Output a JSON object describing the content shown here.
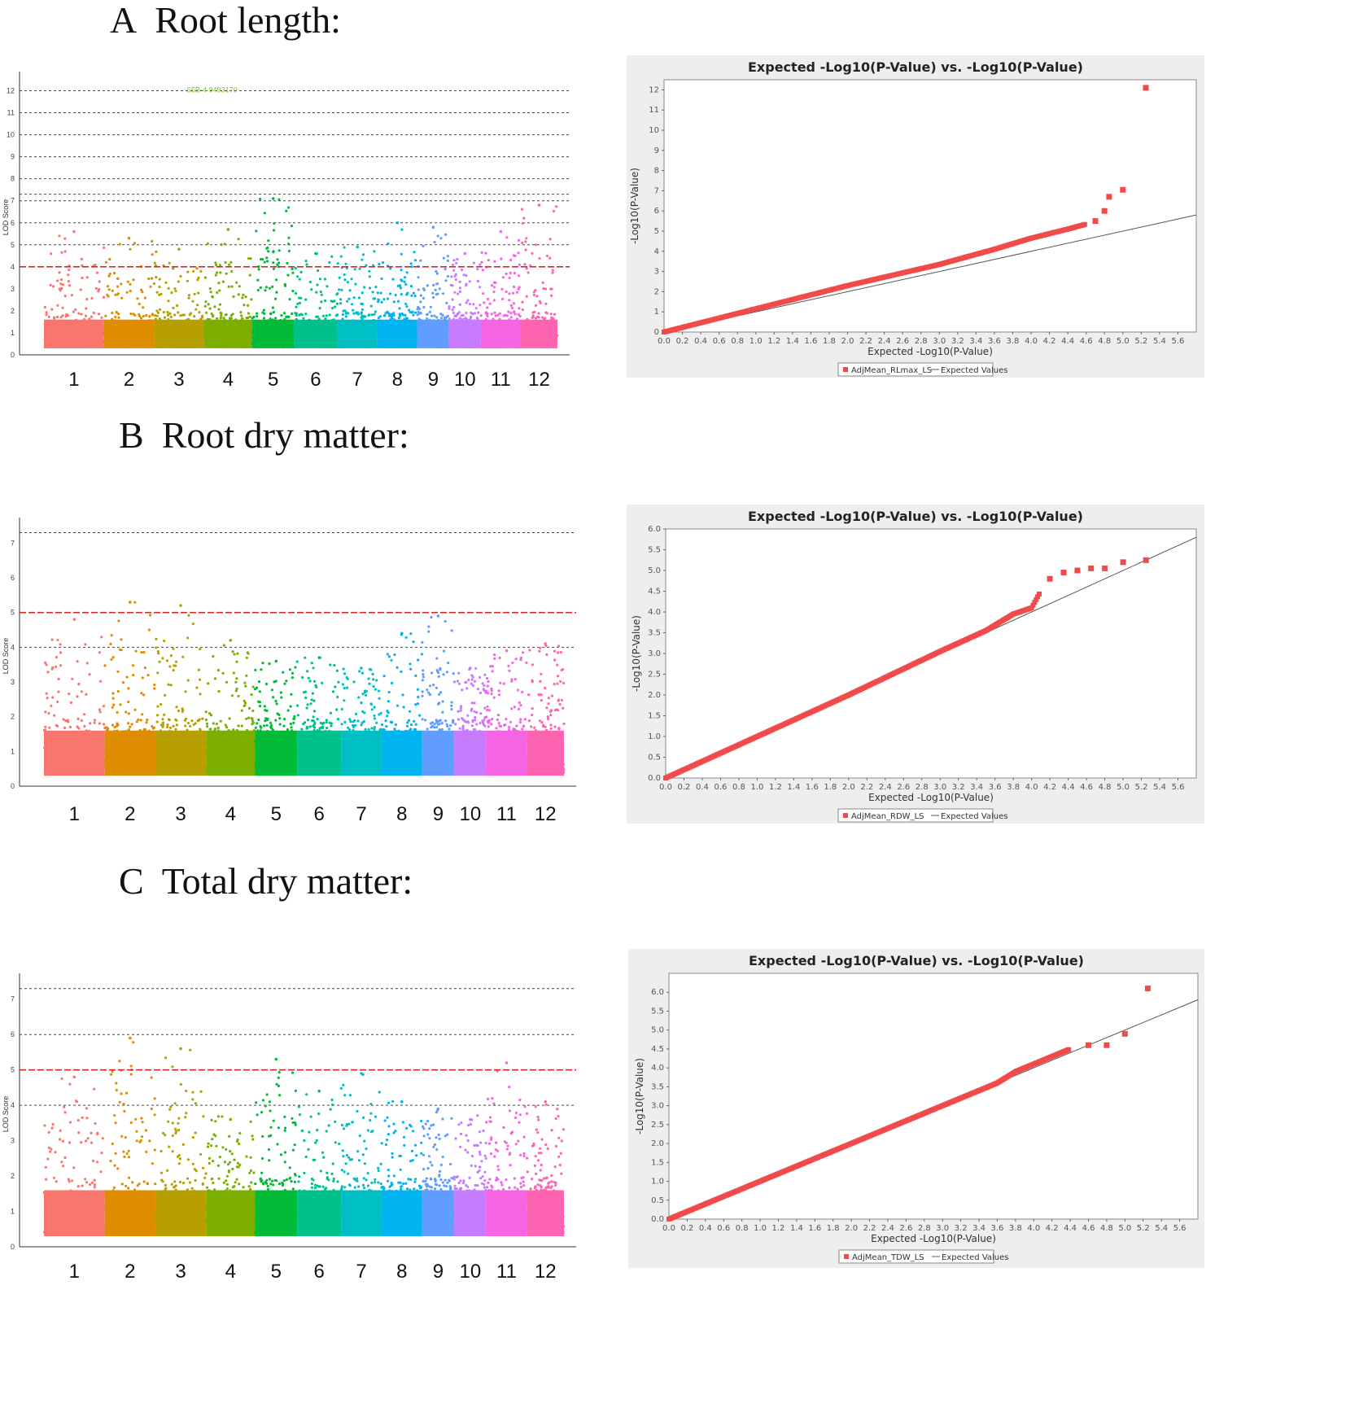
{
  "panels": [
    {
      "letter": "A",
      "title": "Root length:",
      "manhattan": {
        "ylabel": "LOD Score",
        "ymax": 12.5,
        "yticks": [
          0,
          1,
          2,
          3,
          4,
          5,
          6,
          7,
          8,
          9,
          10,
          11,
          12
        ],
        "threshold_red": 4.0,
        "threshold_dashed": [
          5,
          6,
          7,
          7.3,
          8,
          9,
          10,
          11,
          12
        ],
        "chromosomes": [
          "1",
          "2",
          "3",
          "4",
          "5",
          "6",
          "7",
          "8",
          "9",
          "10",
          "11",
          "12"
        ],
        "chr_colors": [
          "#f8766d",
          "#de8c00",
          "#b79f00",
          "#7cae00",
          "#00ba38",
          "#00c08b",
          "#00bfc4",
          "#00b4f0",
          "#619cff",
          "#c77cff",
          "#f564e3",
          "#ff64b0"
        ],
        "chr_peaks": [
          5.6,
          5.3,
          4.8,
          5.7,
          7.1,
          4.6,
          4.9,
          6.0,
          5.8,
          4.6,
          5.6,
          6.8
        ],
        "annotation": "S5B-4 9493170"
      },
      "qq": {
        "title": "Expected -Log10(P-Value) vs. -Log10(P-Value)",
        "xlabel": "Expected -Log10(P-Value)",
        "ylabel": "-Log10(P-Value)",
        "xlim": [
          0,
          5.8
        ],
        "ylim": [
          0,
          12.5
        ],
        "xticks": [
          "0.0",
          "0.2",
          "0.4",
          "0.6",
          "0.8",
          "1.0",
          "1.2",
          "1.4",
          "1.6",
          "1.8",
          "2.0",
          "2.2",
          "2.4",
          "2.6",
          "2.8",
          "3.0",
          "3.2",
          "3.4",
          "3.6",
          "3.8",
          "4.0",
          "4.2",
          "4.4",
          "4.6",
          "4.8",
          "5.0",
          "5.2",
          "5.4",
          "5.6"
        ],
        "yticks": [
          "0",
          "1",
          "2",
          "3",
          "4",
          "5",
          "6",
          "7",
          "8",
          "9",
          "10",
          "11",
          "12"
        ],
        "ytick_values": [
          0,
          1,
          2,
          3,
          4,
          5,
          6,
          7,
          8,
          9,
          10,
          11,
          12
        ],
        "legend_series": "AdjMean_RLmax_LS",
        "legend_line": "Expected Values",
        "curve": [
          [
            0,
            0
          ],
          [
            1,
            1.15
          ],
          [
            2,
            2.3
          ],
          [
            3,
            3.35
          ],
          [
            3.6,
            4.1
          ],
          [
            4.0,
            4.65
          ],
          [
            4.4,
            5.1
          ],
          [
            4.6,
            5.35
          ]
        ],
        "outliers": [
          [
            4.7,
            5.5
          ],
          [
            4.8,
            6.0
          ],
          [
            4.85,
            6.7
          ],
          [
            5.0,
            7.05
          ],
          [
            5.25,
            12.1
          ]
        ]
      }
    },
    {
      "letter": "B",
      "title": "Root dry matter:",
      "manhattan": {
        "ylabel": "LOD Score",
        "ymax": 7.5,
        "yticks": [
          0,
          1,
          2,
          3,
          4,
          5,
          6,
          7
        ],
        "threshold_red": 5.0,
        "threshold_dashed": [
          4.0,
          7.3
        ],
        "chromosomes": [
          "1",
          "2",
          "3",
          "4",
          "5",
          "6",
          "7",
          "8",
          "9",
          "10",
          "11",
          "12"
        ],
        "chr_colors": [
          "#f8766d",
          "#de8c00",
          "#b79f00",
          "#7cae00",
          "#00ba38",
          "#00c08b",
          "#00bfc4",
          "#00b4f0",
          "#619cff",
          "#c77cff",
          "#f564e3",
          "#ff64b0"
        ],
        "chr_peaks": [
          4.8,
          5.3,
          5.2,
          4.2,
          3.6,
          3.7,
          3.4,
          4.4,
          4.9,
          3.4,
          3.9,
          4.1
        ]
      },
      "qq": {
        "title": "Expected -Log10(P-Value) vs. -Log10(P-Value)",
        "xlabel": "Expected -Log10(P-Value)",
        "ylabel": "-Log10(P-Value)",
        "xlim": [
          0,
          5.8
        ],
        "ylim": [
          0,
          6.0
        ],
        "xticks": [
          "0.0",
          "0.2",
          "0.4",
          "0.6",
          "0.8",
          "1.0",
          "1.2",
          "1.4",
          "1.6",
          "1.8",
          "2.0",
          "2.2",
          "2.4",
          "2.6",
          "2.8",
          "3.0",
          "3.2",
          "3.4",
          "3.6",
          "3.8",
          "4.0",
          "4.2",
          "4.4",
          "4.6",
          "4.8",
          "5.0",
          "5.2",
          "5.4",
          "5.6"
        ],
        "yticks": [
          "0.0",
          "0.5",
          "1.0",
          "1.5",
          "2.0",
          "2.5",
          "3.0",
          "3.5",
          "4.0",
          "4.5",
          "5.0",
          "5.5",
          "6.0"
        ],
        "ytick_values": [
          0,
          0.5,
          1,
          1.5,
          2,
          2.5,
          3,
          3.5,
          4,
          4.5,
          5,
          5.5,
          6
        ],
        "legend_series": "AdjMean_RDW_LS",
        "legend_line": "Expected Values",
        "curve": [
          [
            0,
            0
          ],
          [
            1,
            1.0
          ],
          [
            2,
            2.0
          ],
          [
            3,
            3.05
          ],
          [
            3.5,
            3.55
          ],
          [
            3.8,
            3.95
          ],
          [
            4.0,
            4.1
          ],
          [
            4.1,
            4.5
          ]
        ],
        "outliers": [
          [
            4.2,
            4.8
          ],
          [
            4.35,
            4.95
          ],
          [
            4.5,
            5.0
          ],
          [
            4.65,
            5.05
          ],
          [
            4.8,
            5.05
          ],
          [
            5.0,
            5.2
          ],
          [
            5.25,
            5.25
          ]
        ]
      }
    },
    {
      "letter": "C",
      "title": "Total dry matter:",
      "manhattan": {
        "ylabel": "LOD Score",
        "ymax": 7.5,
        "yticks": [
          0,
          1,
          2,
          3,
          4,
          5,
          6,
          7
        ],
        "threshold_red": 5.0,
        "threshold_dashed": [
          4.0,
          6.0,
          7.3
        ],
        "chromosomes": [
          "1",
          "2",
          "3",
          "4",
          "5",
          "6",
          "7",
          "8",
          "9",
          "10",
          "11",
          "12"
        ],
        "chr_colors": [
          "#f8766d",
          "#de8c00",
          "#b79f00",
          "#7cae00",
          "#00ba38",
          "#00c08b",
          "#00bfc4",
          "#00b4f0",
          "#619cff",
          "#c77cff",
          "#f564e3",
          "#ff64b0"
        ],
        "chr_peaks": [
          4.8,
          5.9,
          5.6,
          3.6,
          5.3,
          4.4,
          4.9,
          4.1,
          3.9,
          3.6,
          5.2,
          4.1
        ]
      },
      "qq": {
        "title": "Expected -Log10(P-Value) vs. -Log10(P-Value)",
        "xlabel": "Expected -Log10(P-Value)",
        "ylabel": "-Log10(P-Value)",
        "xlim": [
          0,
          5.8
        ],
        "ylim": [
          0,
          6.5
        ],
        "xticks": [
          "0.0",
          "0.2",
          "0.4",
          "0.6",
          "0.8",
          "1.0",
          "1.2",
          "1.4",
          "1.6",
          "1.8",
          "2.0",
          "2.2",
          "2.4",
          "2.6",
          "2.8",
          "3.0",
          "3.2",
          "3.4",
          "3.6",
          "3.8",
          "4.0",
          "4.2",
          "4.4",
          "4.6",
          "4.8",
          "5.0",
          "5.2",
          "5.4",
          "5.6"
        ],
        "yticks": [
          "0.0",
          "0.5",
          "1.0",
          "1.5",
          "2.0",
          "2.5",
          "3.0",
          "3.5",
          "4.0",
          "4.5",
          "5.0",
          "5.5",
          "6.0"
        ],
        "ytick_values": [
          0,
          0.5,
          1,
          1.5,
          2,
          2.5,
          3,
          3.5,
          4,
          4.5,
          5,
          5.5,
          6
        ],
        "legend_series": "AdjMean_TDW_LS",
        "legend_line": "Expected Values",
        "curve": [
          [
            0,
            0
          ],
          [
            1,
            1.0
          ],
          [
            2,
            2.0
          ],
          [
            3,
            3.0
          ],
          [
            3.6,
            3.6
          ],
          [
            3.8,
            3.9
          ],
          [
            4.0,
            4.1
          ],
          [
            4.4,
            4.5
          ]
        ],
        "outliers": [
          [
            4.6,
            4.6
          ],
          [
            4.8,
            4.6
          ],
          [
            5.0,
            4.9
          ],
          [
            5.25,
            6.1
          ]
        ]
      }
    }
  ]
}
